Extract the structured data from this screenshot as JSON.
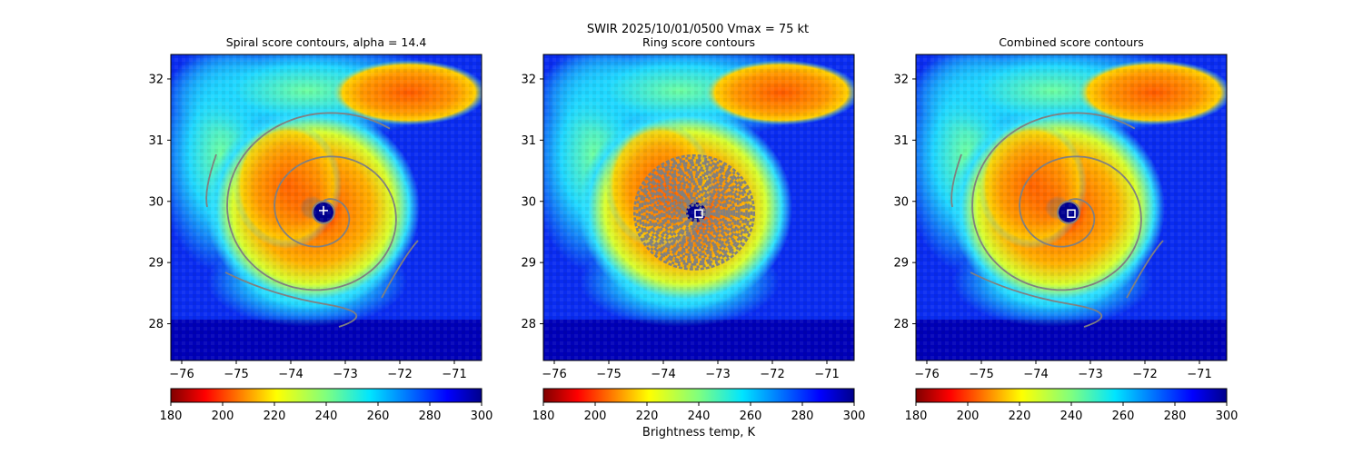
{
  "suptitle": "SWIR  2025/10/01/0500    Vmax = 75 kt",
  "colorbar": {
    "label": "Brightness temp, K",
    "ticks": [
      180,
      200,
      220,
      240,
      260,
      280,
      300
    ],
    "range": [
      180,
      300
    ],
    "cmap": "jet_r"
  },
  "chart_data": [
    {
      "type": "heatmap",
      "title": "Spiral score contours, alpha = 14.4",
      "xlabel": "",
      "ylabel": "",
      "xlim": [
        -76.2,
        -70.5
      ],
      "ylim": [
        27.4,
        32.4
      ],
      "x_ticks": [
        -76,
        -75,
        -74,
        -73,
        -72,
        -71
      ],
      "y_ticks": [
        28,
        29,
        30,
        31,
        32
      ],
      "center_marker": {
        "type": "plus",
        "lon": -73.4,
        "lat": 29.85
      },
      "contour_color": "#808080",
      "contour_style": "spiral"
    },
    {
      "type": "heatmap",
      "title": "Ring score contours",
      "xlabel": "",
      "ylabel": "",
      "xlim": [
        -76.2,
        -70.5
      ],
      "ylim": [
        27.4,
        32.4
      ],
      "x_ticks": [
        -76,
        -75,
        -74,
        -73,
        -72,
        -71
      ],
      "y_ticks": [
        28,
        29,
        30,
        31,
        32
      ],
      "center_marker": {
        "type": "square",
        "lon": -73.35,
        "lat": 29.8
      },
      "contour_color": "#808080",
      "contour_style": "dense-disk"
    },
    {
      "type": "heatmap",
      "title": "Combined score contours",
      "xlabel": "",
      "ylabel": "",
      "xlim": [
        -76.2,
        -70.5
      ],
      "ylim": [
        27.4,
        32.4
      ],
      "x_ticks": [
        -76,
        -75,
        -74,
        -73,
        -72,
        -71
      ],
      "y_ticks": [
        28,
        29,
        30,
        31,
        32
      ],
      "center_marker": {
        "type": "square",
        "lon": -73.35,
        "lat": 29.8
      },
      "contour_color": "#808080",
      "contour_style": "spiral"
    }
  ]
}
